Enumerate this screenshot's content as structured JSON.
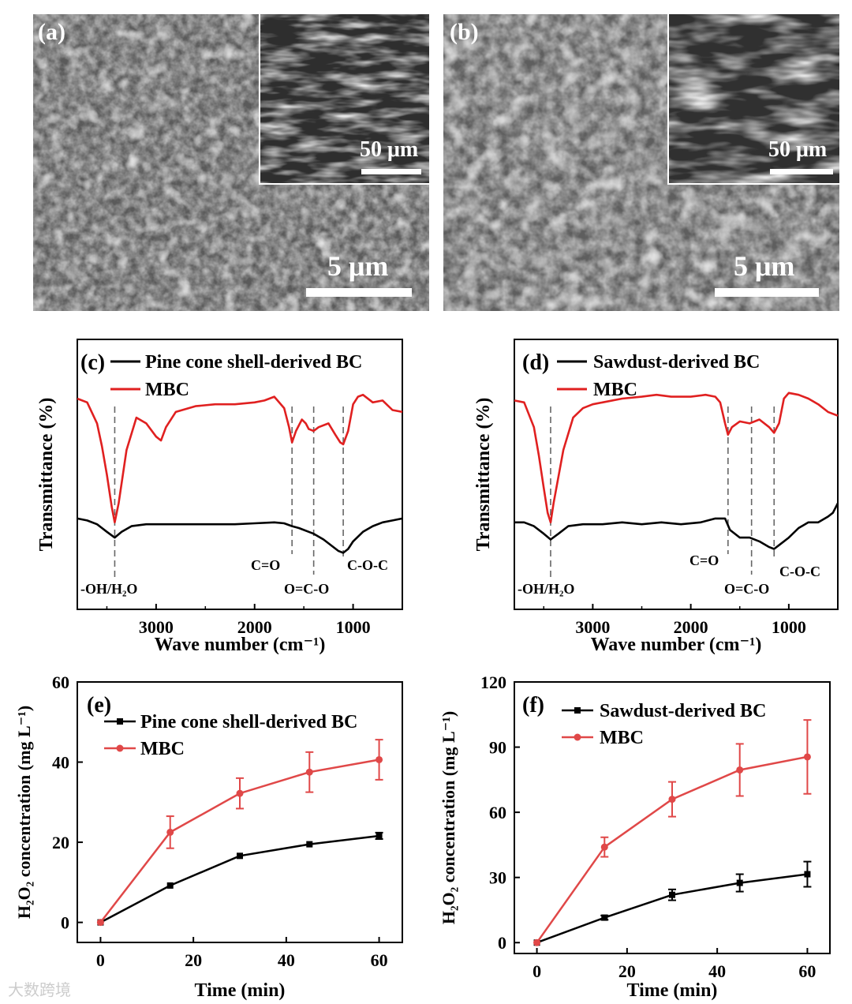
{
  "panels": {
    "a": {
      "label": "(a)",
      "scale_main": "5 μm",
      "scale_inset": "50 μm"
    },
    "b": {
      "label": "(b)",
      "scale_main": "5 μm",
      "scale_inset": "50 μm"
    }
  },
  "chart_data": [
    {
      "panel": "(c)",
      "type": "line",
      "xlabel": "Wave number (cm⁻¹)",
      "ylabel": "Transmittance (%)",
      "xlim": [
        3800,
        500
      ],
      "x_ticks": [
        3000,
        2000,
        1000
      ],
      "y_ticks_shown": false,
      "legend": [
        "Pine cone shell-derived BC",
        "MBC"
      ],
      "colors": {
        "bc": "#000000",
        "mbc": "#e02020"
      },
      "annotations": [
        "-OH/H₂O",
        "C=O",
        "O=C-O",
        "C-O-C"
      ],
      "band_positions_cm": [
        3420,
        1620,
        1400,
        1100
      ],
      "series": [
        {
          "name": "Pine cone shell-derived BC",
          "x": [
            3800,
            3700,
            3600,
            3500,
            3420,
            3350,
            3250,
            3100,
            2950,
            2800,
            2600,
            2400,
            2200,
            2000,
            1800,
            1700,
            1620,
            1550,
            1450,
            1400,
            1300,
            1200,
            1150,
            1100,
            1050,
            1000,
            900,
            800,
            700,
            600,
            500
          ],
          "y": [
            0.22,
            0.21,
            0.19,
            0.15,
            0.12,
            0.15,
            0.18,
            0.19,
            0.19,
            0.19,
            0.19,
            0.19,
            0.19,
            0.195,
            0.2,
            0.195,
            0.18,
            0.17,
            0.15,
            0.14,
            0.11,
            0.07,
            0.05,
            0.04,
            0.06,
            0.1,
            0.15,
            0.18,
            0.2,
            0.21,
            0.22
          ]
        },
        {
          "name": "MBC",
          "x": [
            3800,
            3700,
            3600,
            3550,
            3500,
            3450,
            3420,
            3380,
            3300,
            3200,
            3100,
            3000,
            2950,
            2900,
            2800,
            2600,
            2400,
            2200,
            2000,
            1900,
            1800,
            1700,
            1650,
            1620,
            1580,
            1520,
            1480,
            1450,
            1400,
            1350,
            1250,
            1180,
            1130,
            1100,
            1050,
            1000,
            950,
            900,
            800,
            700,
            600,
            500
          ],
          "y": [
            0.85,
            0.83,
            0.72,
            0.6,
            0.45,
            0.28,
            0.2,
            0.3,
            0.58,
            0.75,
            0.72,
            0.65,
            0.63,
            0.7,
            0.78,
            0.81,
            0.82,
            0.82,
            0.83,
            0.84,
            0.86,
            0.8,
            0.7,
            0.62,
            0.68,
            0.74,
            0.72,
            0.69,
            0.68,
            0.7,
            0.72,
            0.66,
            0.62,
            0.61,
            0.68,
            0.82,
            0.86,
            0.87,
            0.83,
            0.84,
            0.79,
            0.78
          ]
        }
      ]
    },
    {
      "panel": "(d)",
      "type": "line",
      "xlabel": "Wave number (cm⁻¹)",
      "ylabel": "Transmittance (%)",
      "xlim": [
        3800,
        500
      ],
      "x_ticks": [
        3000,
        2000,
        1000
      ],
      "y_ticks_shown": false,
      "legend": [
        "Sawdust-derived BC",
        "MBC"
      ],
      "colors": {
        "bc": "#000000",
        "mbc": "#e02020"
      },
      "annotations": [
        "-OH/H₂O",
        "C=O",
        "O=C-O",
        "C-O-C"
      ],
      "band_positions_cm": [
        3430,
        1620,
        1380,
        1150
      ],
      "series": [
        {
          "name": "Sawdust-derived BC",
          "x": [
            3800,
            3700,
            3600,
            3500,
            3430,
            3350,
            3250,
            3100,
            2900,
            2700,
            2500,
            2300,
            2100,
            1900,
            1750,
            1650,
            1600,
            1500,
            1400,
            1300,
            1200,
            1150,
            1100,
            1000,
            900,
            800,
            700,
            600,
            550,
            500
          ],
          "y": [
            0.2,
            0.2,
            0.18,
            0.14,
            0.11,
            0.14,
            0.18,
            0.19,
            0.19,
            0.2,
            0.19,
            0.2,
            0.19,
            0.2,
            0.22,
            0.22,
            0.16,
            0.12,
            0.12,
            0.1,
            0.07,
            0.06,
            0.08,
            0.12,
            0.17,
            0.2,
            0.2,
            0.23,
            0.25,
            0.3
          ]
        },
        {
          "name": "MBC",
          "x": [
            3800,
            3700,
            3600,
            3550,
            3500,
            3460,
            3430,
            3400,
            3300,
            3200,
            3100,
            3000,
            2900,
            2700,
            2500,
            2350,
            2200,
            2000,
            1850,
            1750,
            1700,
            1650,
            1620,
            1580,
            1500,
            1400,
            1300,
            1200,
            1150,
            1100,
            1050,
            1000,
            900,
            800,
            700,
            600,
            500
          ],
          "y": [
            0.84,
            0.83,
            0.7,
            0.55,
            0.38,
            0.25,
            0.2,
            0.3,
            0.58,
            0.75,
            0.8,
            0.82,
            0.83,
            0.85,
            0.86,
            0.87,
            0.86,
            0.86,
            0.87,
            0.86,
            0.83,
            0.72,
            0.66,
            0.7,
            0.73,
            0.72,
            0.74,
            0.7,
            0.67,
            0.72,
            0.85,
            0.88,
            0.87,
            0.85,
            0.82,
            0.78,
            0.76
          ]
        }
      ]
    },
    {
      "panel": "(e)",
      "type": "line",
      "xlabel": "Time (min)",
      "ylabel": "H₂O₂ concentration (mg L⁻¹)",
      "xlim": [
        -5,
        65
      ],
      "ylim": [
        -5,
        60
      ],
      "x_ticks": [
        0,
        20,
        40,
        60
      ],
      "y_ticks": [
        0,
        20,
        40,
        60
      ],
      "legend": [
        "Pine cone shell-derived BC",
        "MBC"
      ],
      "colors": {
        "bc": "#000000",
        "mbc": "#e04848"
      },
      "series": [
        {
          "name": "Pine cone shell-derived BC",
          "x": [
            0,
            15,
            30,
            45,
            60
          ],
          "y": [
            0,
            9.2,
            16.6,
            19.5,
            21.6
          ],
          "err": [
            0.3,
            0.4,
            0.5,
            0.5,
            0.8
          ]
        },
        {
          "name": "MBC",
          "x": [
            0,
            15,
            30,
            45,
            60
          ],
          "y": [
            0,
            22.5,
            32.2,
            37.5,
            40.6
          ],
          "err": [
            0.3,
            4.0,
            3.8,
            5.0,
            5.0
          ]
        }
      ]
    },
    {
      "panel": "(f)",
      "type": "line",
      "xlabel": "Time (min)",
      "ylabel": "H₂O₂ concentration (mg L⁻¹)",
      "xlim": [
        -5,
        65
      ],
      "ylim": [
        -5,
        120
      ],
      "x_ticks": [
        0,
        20,
        40,
        60
      ],
      "y_ticks": [
        0,
        30,
        60,
        90,
        120
      ],
      "legend": [
        "Sawdust-derived BC",
        "MBC"
      ],
      "colors": {
        "bc": "#000000",
        "mbc": "#e04848"
      },
      "series": [
        {
          "name": "Sawdust-derived BC",
          "x": [
            0,
            15,
            30,
            45,
            60
          ],
          "y": [
            0,
            11.5,
            22,
            27.5,
            31.5
          ],
          "err": [
            0.3,
            1.0,
            2.5,
            4.0,
            5.8
          ]
        },
        {
          "name": "MBC",
          "x": [
            0,
            15,
            30,
            45,
            60
          ],
          "y": [
            0,
            44,
            66,
            79.5,
            85.5
          ],
          "err": [
            0.3,
            4.5,
            8.0,
            12.0,
            17.0
          ]
        }
      ]
    }
  ],
  "watermark": "大数跨境"
}
